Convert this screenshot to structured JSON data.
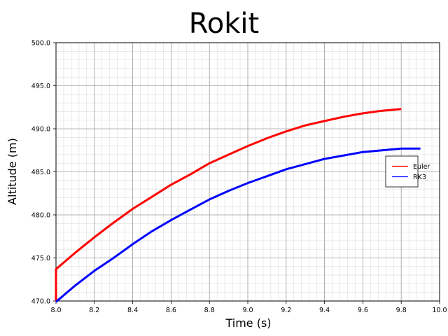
{
  "chart_data": {
    "type": "line",
    "title": "Rokit",
    "xlabel": "Time (s)",
    "ylabel": "Altitude (m)",
    "xlim": [
      8.0,
      10.0
    ],
    "ylim": [
      470.0,
      500.0
    ],
    "x_ticks": [
      "8.0",
      "8.2",
      "8.4",
      "8.6",
      "8.8",
      "9.0",
      "9.2",
      "9.4",
      "9.6",
      "9.8",
      "10.0"
    ],
    "y_ticks": [
      "470.0",
      "475.0",
      "480.0",
      "485.0",
      "490.0",
      "495.0",
      "500.0"
    ],
    "grid": true,
    "minor_grid": true,
    "legend_position": "right",
    "series": [
      {
        "name": "Euler",
        "color": "#ff0000",
        "x": [
          8.0,
          8.0,
          8.1,
          8.2,
          8.3,
          8.4,
          8.5,
          8.6,
          8.7,
          8.8,
          8.9,
          9.0,
          9.1,
          9.2,
          9.3,
          9.4,
          9.5,
          9.6,
          9.7,
          9.8
        ],
        "y": [
          470.0,
          473.7,
          475.6,
          477.4,
          479.1,
          480.7,
          482.1,
          483.5,
          484.7,
          486.0,
          487.0,
          488.0,
          488.9,
          489.7,
          490.4,
          490.9,
          491.4,
          491.8,
          492.1,
          492.3
        ]
      },
      {
        "name": "RK3",
        "color": "#0000ff",
        "x": [
          8.0,
          8.1,
          8.2,
          8.3,
          8.4,
          8.5,
          8.6,
          8.7,
          8.8,
          8.9,
          9.0,
          9.1,
          9.2,
          9.3,
          9.4,
          9.5,
          9.6,
          9.7,
          9.8,
          9.9
        ],
        "y": [
          469.9,
          471.8,
          473.5,
          475.0,
          476.6,
          478.1,
          479.4,
          480.6,
          481.8,
          482.8,
          483.7,
          484.5,
          485.3,
          485.9,
          486.5,
          486.9,
          487.3,
          487.5,
          487.7,
          487.7
        ]
      }
    ]
  }
}
